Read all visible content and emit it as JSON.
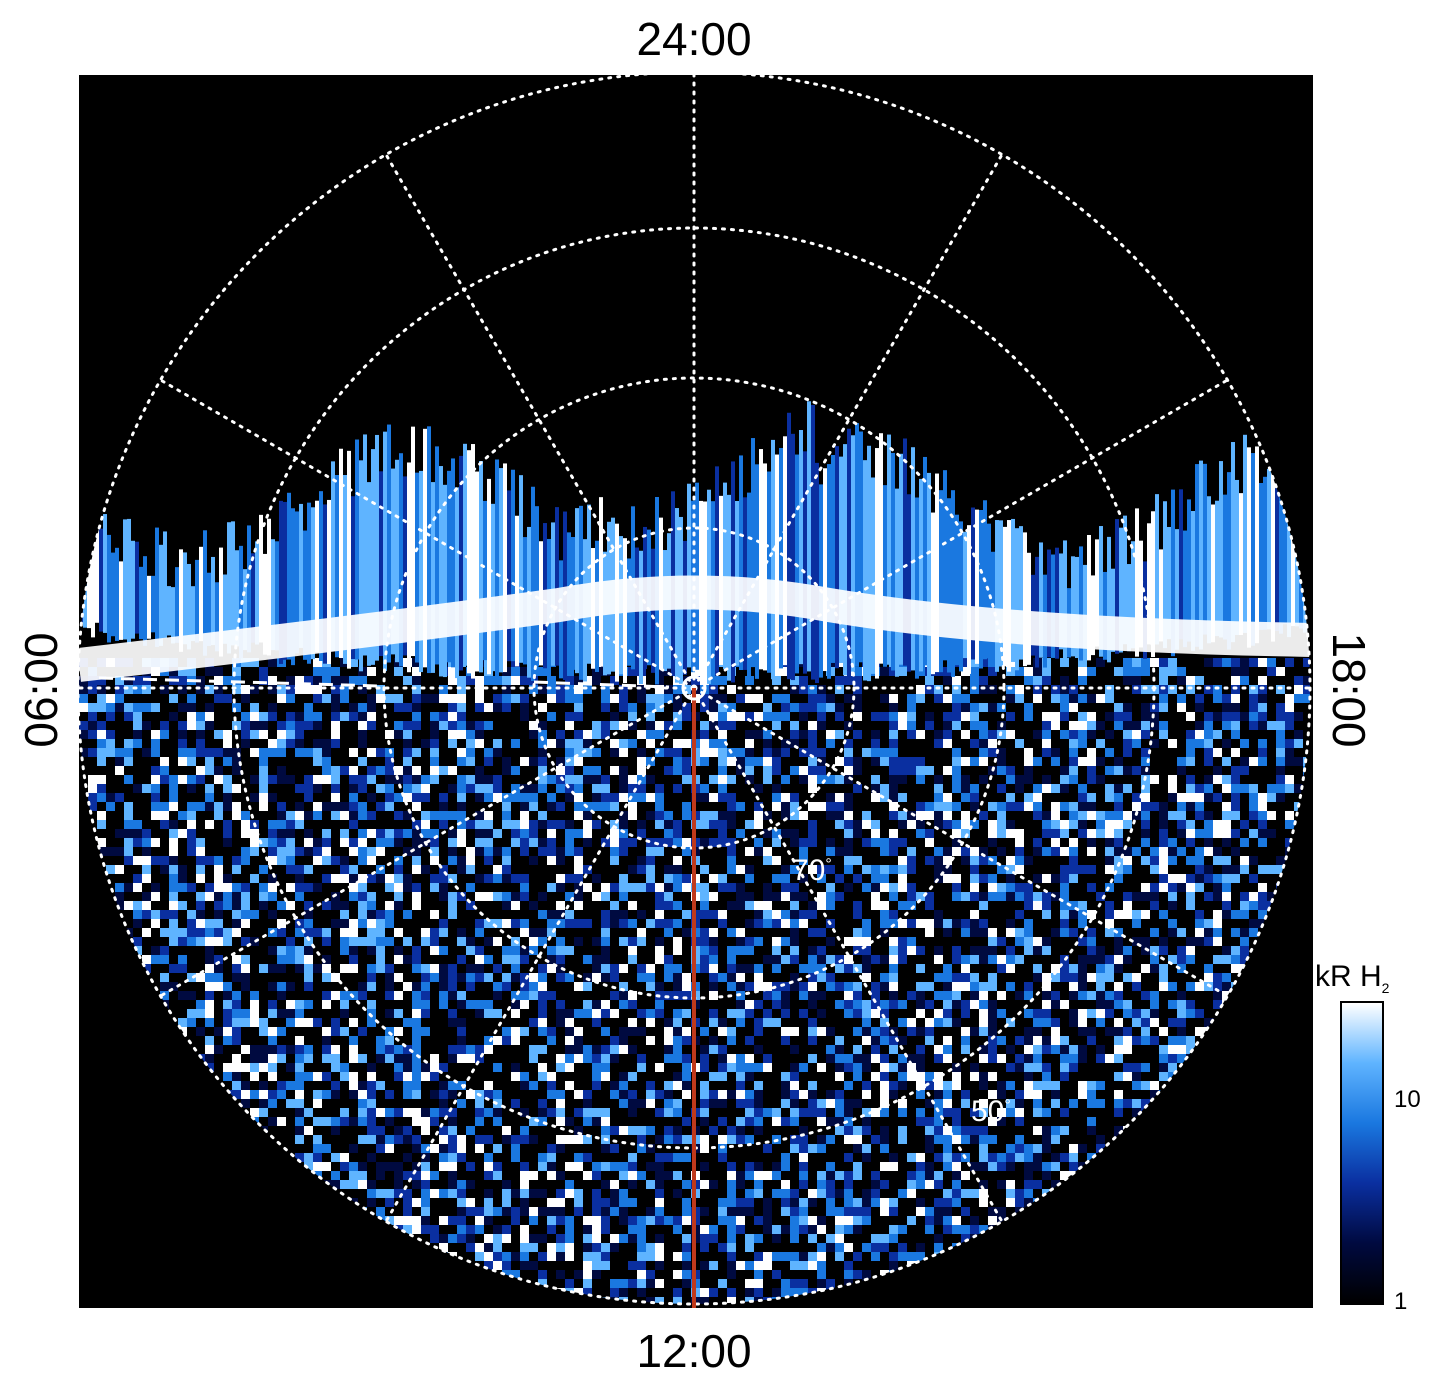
{
  "figure": {
    "local_time_labels": {
      "top": "24:00",
      "bottom": "12:00",
      "left": "06:00",
      "right": "18:00"
    },
    "latitude_labels": [
      {
        "text": "70",
        "unit": "°"
      },
      {
        "text": "50",
        "unit": "°"
      }
    ],
    "grid": {
      "style": "dotted",
      "color": "#ffffff",
      "circles": 4,
      "meridian_step_hours": 2
    },
    "background_color": "#000000",
    "meridian_line_color": "#c0391b",
    "colorbar": {
      "title": "kR H",
      "title_sub": "2",
      "scale": "log",
      "ticks": [
        "10",
        "1"
      ],
      "colors": [
        "#000000",
        "#000a40",
        "#0a2fa0",
        "#1a78e0",
        "#5fb4ff",
        "#ffffff"
      ]
    }
  }
}
